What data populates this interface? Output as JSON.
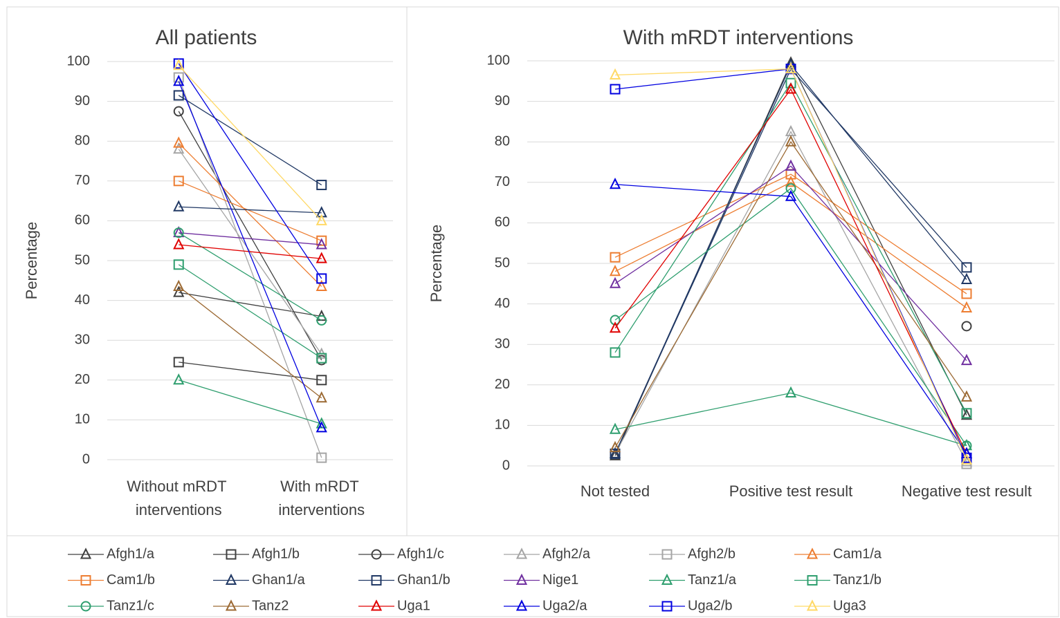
{
  "chart_data": [
    {
      "type": "line",
      "title": "All patients",
      "y_label": "Percentage",
      "categories": [
        "Without mRDT interventions",
        "With mRDT interventions"
      ],
      "ylim": [
        0,
        100
      ],
      "yticks": [
        0,
        10,
        20,
        30,
        40,
        50,
        60,
        70,
        80,
        90,
        100
      ],
      "grid": true,
      "series": [
        {
          "name": "Afgh1/a",
          "color": "#404040",
          "marker": "triangle",
          "values": [
            42,
            36
          ]
        },
        {
          "name": "Afgh1/b",
          "color": "#404040",
          "marker": "square",
          "values": [
            24.5,
            20
          ]
        },
        {
          "name": "Afgh1/c",
          "color": "#404040",
          "marker": "circle",
          "values": [
            87.5,
            25
          ]
        },
        {
          "name": "Afgh2/a",
          "color": "#a5a5a5",
          "marker": "triangle",
          "values": [
            78,
            26.5
          ]
        },
        {
          "name": "Afgh2/b",
          "color": "#a5a5a5",
          "marker": "square",
          "values": [
            96,
            0.5
          ]
        },
        {
          "name": "Cam1/a",
          "color": "#ed7d31",
          "marker": "triangle",
          "values": [
            79.5,
            43.5
          ]
        },
        {
          "name": "Cam1/b",
          "color": "#ed7d31",
          "marker": "square",
          "values": [
            70,
            55
          ]
        },
        {
          "name": "Ghan1/a",
          "color": "#203864",
          "marker": "triangle",
          "values": [
            63.5,
            62
          ]
        },
        {
          "name": "Ghan1/b",
          "color": "#203864",
          "marker": "square",
          "values": [
            91.5,
            69
          ]
        },
        {
          "name": "Nige1",
          "color": "#7030a0",
          "marker": "triangle",
          "values": [
            57,
            54
          ]
        },
        {
          "name": "Tanz1/a",
          "color": "#2e9e6e",
          "marker": "triangle",
          "values": [
            20,
            9
          ]
        },
        {
          "name": "Tanz1/b",
          "color": "#2e9e6e",
          "marker": "square",
          "values": [
            49,
            25.5
          ]
        },
        {
          "name": "Tanz1/c",
          "color": "#2e9e6e",
          "marker": "circle",
          "values": [
            57,
            35
          ]
        },
        {
          "name": "Tanz2",
          "color": "#9c6a34",
          "marker": "triangle",
          "values": [
            43.5,
            15.5
          ]
        },
        {
          "name": "Uga1",
          "color": "#e00000",
          "marker": "triangle",
          "values": [
            54,
            50.5
          ]
        },
        {
          "name": "Uga2/a",
          "color": "#0000e0",
          "marker": "triangle",
          "values": [
            95,
            8
          ]
        },
        {
          "name": "Uga2/b",
          "color": "#0000e0",
          "marker": "square",
          "values": [
            99.5,
            45.5
          ]
        },
        {
          "name": "Uga3",
          "color": "#ffd966",
          "marker": "triangle",
          "values": [
            99,
            60
          ]
        }
      ]
    },
    {
      "type": "line",
      "title": "With mRDT interventions",
      "y_label": "Percentage",
      "categories": [
        "Not tested",
        "Positive test result",
        "Negative test result"
      ],
      "ylim": [
        0,
        100
      ],
      "yticks": [
        0,
        10,
        20,
        30,
        40,
        50,
        60,
        70,
        80,
        90,
        100
      ],
      "grid": true,
      "series": [
        {
          "name": "Afgh1/a",
          "color": "#404040",
          "marker": "triangle",
          "values": [
            2.5,
            99.5,
            12.5
          ]
        },
        {
          "name": "Afgh1/b",
          "color": "#404040",
          "marker": "square",
          "values": [
            null,
            null,
            null
          ]
        },
        {
          "name": "Afgh1/c",
          "color": "#404040",
          "marker": "circle",
          "values": [
            null,
            null,
            34.5
          ]
        },
        {
          "name": "Afgh2/a",
          "color": "#a5a5a5",
          "marker": "triangle",
          "values": [
            3,
            82.5,
            1
          ]
        },
        {
          "name": "Afgh2/b",
          "color": "#a5a5a5",
          "marker": "square",
          "values": [
            null,
            null,
            0.5
          ]
        },
        {
          "name": "Cam1/a",
          "color": "#ed7d31",
          "marker": "triangle",
          "values": [
            48,
            70,
            39
          ]
        },
        {
          "name": "Cam1/b",
          "color": "#ed7d31",
          "marker": "square",
          "values": [
            51.5,
            72,
            42.5
          ]
        },
        {
          "name": "Ghan1/a",
          "color": "#203864",
          "marker": "triangle",
          "values": [
            3,
            99,
            46
          ]
        },
        {
          "name": "Ghan1/b",
          "color": "#203864",
          "marker": "square",
          "values": [
            3,
            98,
            49
          ]
        },
        {
          "name": "Nige1",
          "color": "#7030a0",
          "marker": "triangle",
          "values": [
            45,
            74,
            26
          ]
        },
        {
          "name": "Tanz1/a",
          "color": "#2e9e6e",
          "marker": "triangle",
          "values": [
            9,
            18,
            5
          ]
        },
        {
          "name": "Tanz1/b",
          "color": "#2e9e6e",
          "marker": "square",
          "values": [
            28,
            94.5,
            13
          ]
        },
        {
          "name": "Tanz1/c",
          "color": "#2e9e6e",
          "marker": "circle",
          "values": [
            36,
            68.5,
            5
          ]
        },
        {
          "name": "Tanz2",
          "color": "#9c6a34",
          "marker": "triangle",
          "values": [
            4.5,
            80,
            17
          ]
        },
        {
          "name": "Uga1",
          "color": "#e00000",
          "marker": "triangle",
          "values": [
            34,
            93,
            3
          ]
        },
        {
          "name": "Uga2/a",
          "color": "#0000e0",
          "marker": "triangle",
          "values": [
            69.5,
            66.5,
            3
          ]
        },
        {
          "name": "Uga2/b",
          "color": "#0000e0",
          "marker": "square",
          "values": [
            93,
            98,
            2
          ]
        },
        {
          "name": "Uga3",
          "color": "#ffd966",
          "marker": "triangle",
          "values": [
            96.5,
            98,
            1.5
          ]
        }
      ]
    }
  ]
}
